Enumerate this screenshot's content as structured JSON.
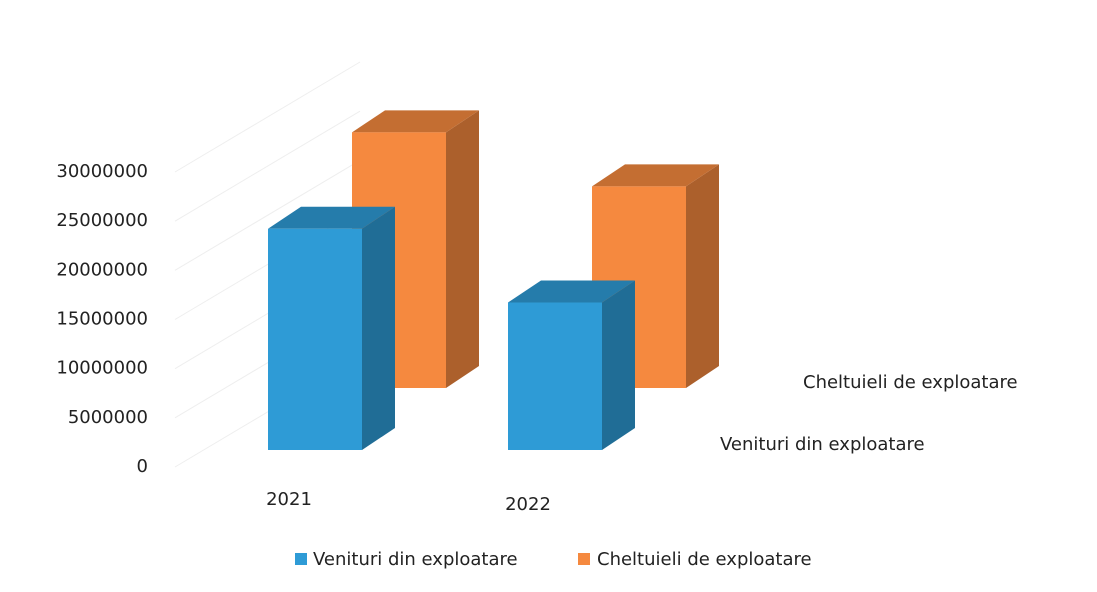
{
  "chart_data": {
    "type": "bar3d",
    "categories": [
      "2021",
      "2022"
    ],
    "series": [
      {
        "name": "Venituri din exploatare",
        "color": "#2e9bd6",
        "values": [
          22500000,
          15000000
        ]
      },
      {
        "name": "Cheltuieli de exploatare",
        "color": "#f5893f",
        "values": [
          26000000,
          20500000
        ]
      }
    ],
    "ylim": [
      0,
      30000000
    ],
    "yticks": [
      0,
      5000000,
      10000000,
      15000000,
      20000000,
      25000000,
      30000000
    ],
    "grid": true,
    "legend": "bottom"
  }
}
